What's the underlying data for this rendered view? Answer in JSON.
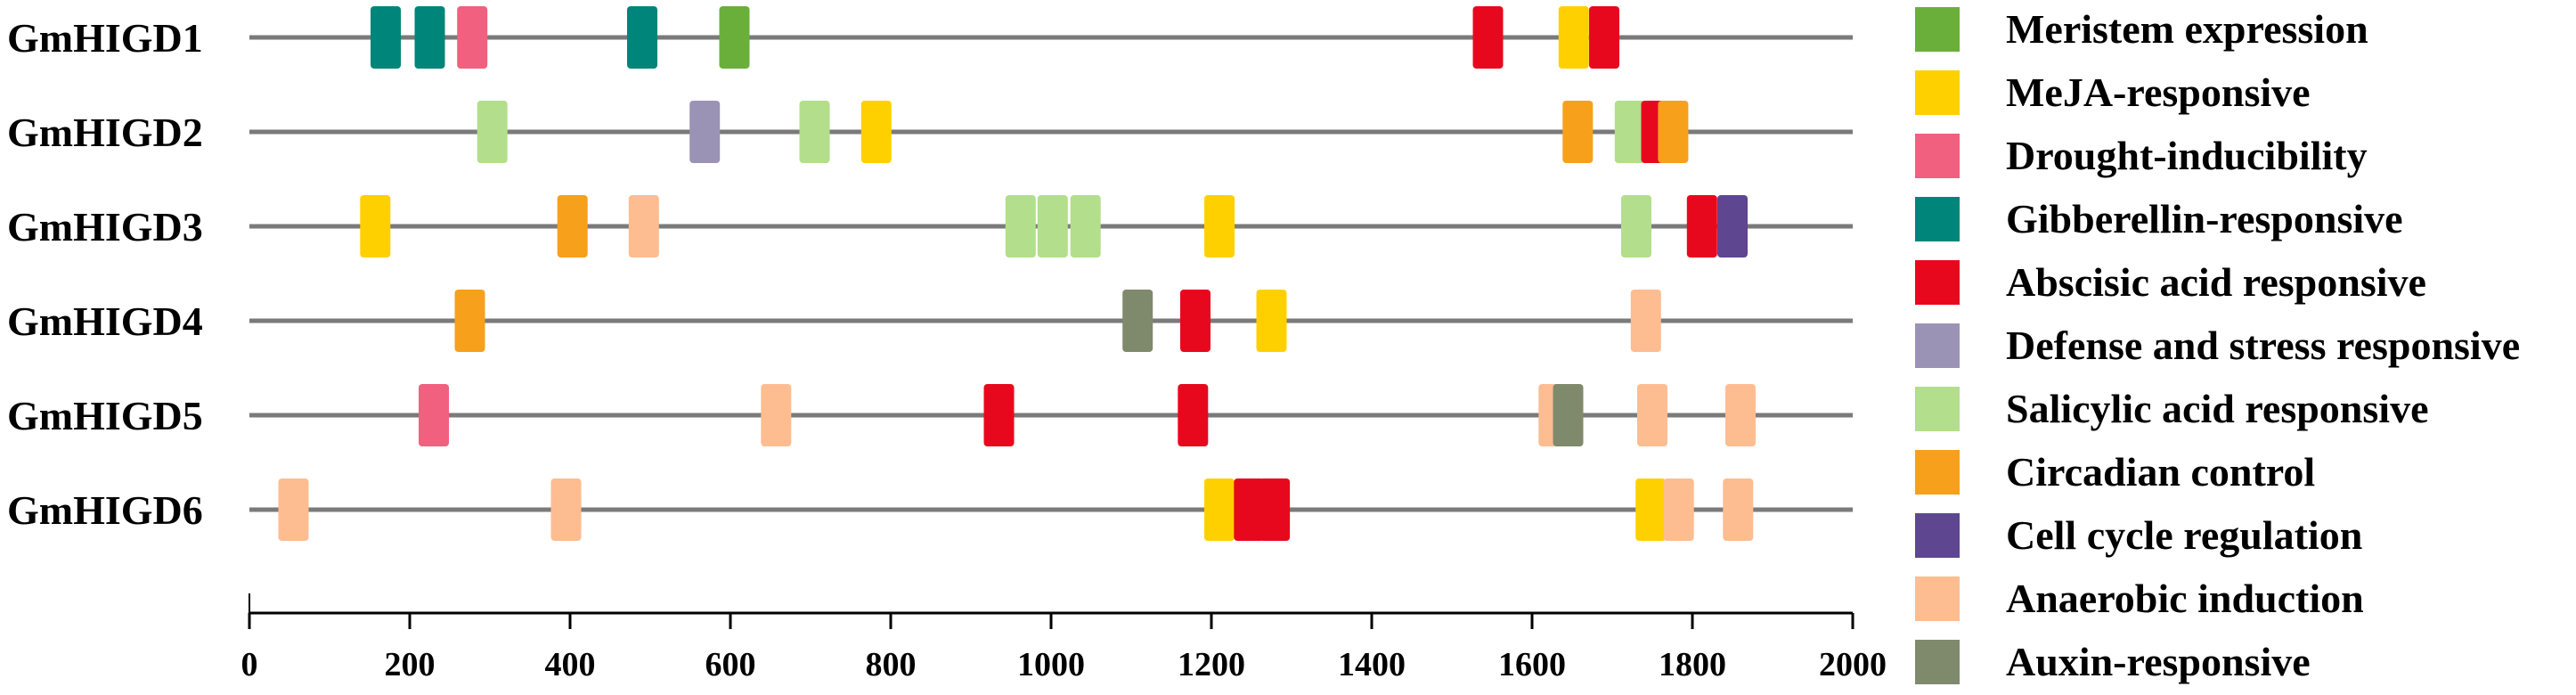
{
  "chart_data": {
    "type": "promoter-element-map",
    "title": "",
    "xlabel": "",
    "ylabel": "",
    "xlim": [
      0,
      2000
    ],
    "x_ticks": [
      0,
      200,
      400,
      600,
      800,
      1000,
      1200,
      1400,
      1600,
      1800,
      2000
    ],
    "x_tick_labels": [
      "0",
      "200",
      "400",
      "600",
      "800",
      "1000",
      "1200",
      "1400",
      "1600",
      "1800",
      "2000"
    ],
    "legend_position": "right",
    "categories": [
      {
        "key": "meristem",
        "label": "Meristem expression",
        "color": "#6aaf3a"
      },
      {
        "key": "meja",
        "label": "MeJA-responsive",
        "color": "#ffd000"
      },
      {
        "key": "drought",
        "label": "Drought-inducibility",
        "color": "#f2607f"
      },
      {
        "key": "gibberellin",
        "label": "Gibberellin-responsive",
        "color": "#00857a"
      },
      {
        "key": "aba",
        "label": "Abscisic acid responsive",
        "color": "#e8081e"
      },
      {
        "key": "defense",
        "label": "Defense and stress responsive",
        "color": "#9b93b6"
      },
      {
        "key": "salicylic",
        "label": "Salicylic acid responsive",
        "color": "#b3de8c"
      },
      {
        "key": "circadian",
        "label": "Circadian control",
        "color": "#f7a01c"
      },
      {
        "key": "cellcycle",
        "label": "Cell cycle regulation",
        "color": "#5e4691"
      },
      {
        "key": "anaerobic",
        "label": "Anaerobic induction",
        "color": "#fdbd91"
      },
      {
        "key": "auxin",
        "label": "Auxin-responsive",
        "color": "#7f8a6d"
      }
    ],
    "genes": [
      {
        "name": "GmHIGD1",
        "elements": [
          {
            "pos": 170,
            "type": "gibberellin"
          },
          {
            "pos": 225,
            "type": "gibberellin"
          },
          {
            "pos": 278,
            "type": "drought"
          },
          {
            "pos": 490,
            "type": "gibberellin"
          },
          {
            "pos": 605,
            "type": "meristem"
          },
          {
            "pos": 1545,
            "type": "aba"
          },
          {
            "pos": 1652,
            "type": "meja"
          },
          {
            "pos": 1690,
            "type": "aba"
          }
        ]
      },
      {
        "name": "GmHIGD2",
        "elements": [
          {
            "pos": 303,
            "type": "salicylic"
          },
          {
            "pos": 568,
            "type": "defense"
          },
          {
            "pos": 705,
            "type": "salicylic"
          },
          {
            "pos": 782,
            "type": "meja"
          },
          {
            "pos": 1657,
            "type": "circadian"
          },
          {
            "pos": 1722,
            "type": "salicylic"
          },
          {
            "pos": 1755,
            "type": "aba"
          },
          {
            "pos": 1776,
            "type": "circadian"
          }
        ]
      },
      {
        "name": "GmHIGD3",
        "elements": [
          {
            "pos": 157,
            "type": "meja"
          },
          {
            "pos": 403,
            "type": "circadian"
          },
          {
            "pos": 492,
            "type": "anaerobic"
          },
          {
            "pos": 962,
            "type": "salicylic"
          },
          {
            "pos": 1002,
            "type": "salicylic"
          },
          {
            "pos": 1043,
            "type": "salicylic"
          },
          {
            "pos": 1210,
            "type": "meja"
          },
          {
            "pos": 1730,
            "type": "salicylic"
          },
          {
            "pos": 1812,
            "type": "aba"
          },
          {
            "pos": 1850,
            "type": "cellcycle"
          }
        ]
      },
      {
        "name": "GmHIGD4",
        "elements": [
          {
            "pos": 275,
            "type": "circadian"
          },
          {
            "pos": 1108,
            "type": "auxin"
          },
          {
            "pos": 1180,
            "type": "aba"
          },
          {
            "pos": 1275,
            "type": "meja"
          },
          {
            "pos": 1742,
            "type": "anaerobic"
          }
        ]
      },
      {
        "name": "GmHIGD5",
        "elements": [
          {
            "pos": 230,
            "type": "drought"
          },
          {
            "pos": 657,
            "type": "anaerobic"
          },
          {
            "pos": 935,
            "type": "aba"
          },
          {
            "pos": 1177,
            "type": "aba"
          },
          {
            "pos": 1627,
            "type": "anaerobic"
          },
          {
            "pos": 1645,
            "type": "auxin"
          },
          {
            "pos": 1750,
            "type": "anaerobic"
          },
          {
            "pos": 1860,
            "type": "anaerobic"
          }
        ]
      },
      {
        "name": "GmHIGD6",
        "elements": [
          {
            "pos": 55,
            "type": "anaerobic"
          },
          {
            "pos": 395,
            "type": "anaerobic"
          },
          {
            "pos": 1210,
            "type": "meja"
          },
          {
            "pos": 1247,
            "type": "aba"
          },
          {
            "pos": 1279,
            "type": "aba"
          },
          {
            "pos": 1748,
            "type": "meja"
          },
          {
            "pos": 1783,
            "type": "anaerobic"
          },
          {
            "pos": 1857,
            "type": "anaerobic"
          }
        ]
      }
    ]
  }
}
